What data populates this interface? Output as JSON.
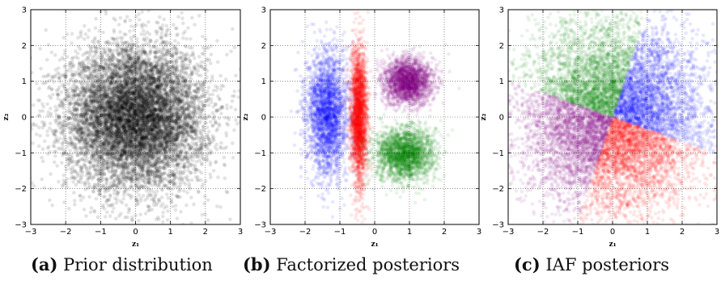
{
  "chart_data": [
    {
      "type": "scatter",
      "caption_tag": "(a)",
      "caption_text": "Prior distribution",
      "xlabel": "z₁",
      "ylabel": "z₂",
      "xlim": [
        -3,
        3
      ],
      "ylim": [
        -3,
        3
      ],
      "xticks": [
        "−3",
        "−2",
        "−1",
        "0",
        "1",
        "2",
        "3"
      ],
      "yticks": [
        "−3",
        "−2",
        "−1",
        "0",
        "1",
        "2",
        "3"
      ],
      "grid": true,
      "series": [
        {
          "distribution": "standard normal",
          "mean": [
            0,
            0
          ],
          "std": [
            1,
            1
          ],
          "color": "#000000",
          "count": 9000
        }
      ]
    },
    {
      "type": "scatter",
      "caption_tag": "(b)",
      "caption_text": "Factorized posteriors",
      "xlabel": "z₁",
      "ylabel": "z₂",
      "xlim": [
        -3,
        3
      ],
      "ylim": [
        -3,
        3
      ],
      "xticks": [
        "−3",
        "−2",
        "−1",
        "0",
        "1",
        "2",
        "3"
      ],
      "yticks": [
        "−3",
        "−2",
        "−1",
        "0",
        "1",
        "2",
        "3"
      ],
      "grid": true,
      "series": [
        {
          "distribution": "axis-aligned gaussian",
          "mean": [
            -1.35,
            0.1
          ],
          "std": [
            0.3,
            0.85
          ],
          "color": "#0000ff",
          "count": 2600
        },
        {
          "distribution": "axis-aligned gaussian",
          "mean": [
            -0.45,
            0.0
          ],
          "std": [
            0.12,
            0.95
          ],
          "color": "#ff0000",
          "count": 2600
        },
        {
          "distribution": "axis-aligned gaussian",
          "mean": [
            0.95,
            1.0
          ],
          "std": [
            0.35,
            0.32
          ],
          "color": "#800080",
          "count": 2300
        },
        {
          "distribution": "axis-aligned gaussian",
          "mean": [
            0.85,
            -1.05
          ],
          "std": [
            0.42,
            0.38
          ],
          "color": "#008000",
          "count": 2300
        }
      ]
    },
    {
      "type": "scatter",
      "caption_tag": "(c)",
      "caption_text": "IAF posteriors",
      "xlabel": "z₁",
      "ylabel": "z₂",
      "xlim": [
        -3,
        3
      ],
      "ylim": [
        -3,
        3
      ],
      "xticks": [
        "−3",
        "−2",
        "−1",
        "0",
        "1",
        "2",
        "3"
      ],
      "yticks": [
        "−3",
        "−2",
        "−1",
        "0",
        "1",
        "2",
        "3"
      ],
      "grid": true,
      "series": [
        {
          "distribution": "quadrant of rotated gaussian",
          "quadrant": "upper-right",
          "color": "#0000ff",
          "count": 2600
        },
        {
          "distribution": "quadrant of rotated gaussian",
          "quadrant": "lower-right",
          "color": "#ff0000",
          "count": 2600
        },
        {
          "distribution": "quadrant of rotated gaussian",
          "quadrant": "lower-left",
          "color": "#800080",
          "count": 2600
        },
        {
          "distribution": "quadrant of rotated gaussian",
          "quadrant": "upper-left",
          "color": "#008000",
          "count": 2600
        }
      ]
    }
  ]
}
